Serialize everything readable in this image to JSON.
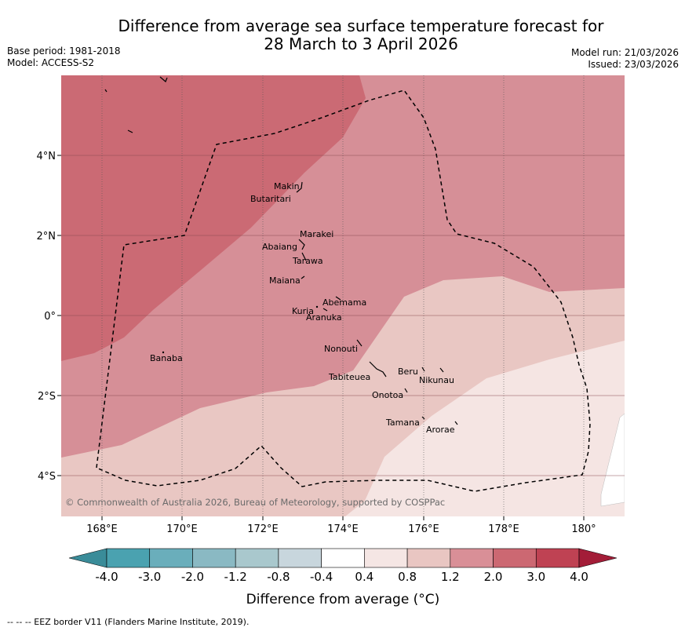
{
  "title": {
    "line1": "Difference from average sea surface temperature forecast for",
    "line2": "28 March to 3 April 2026"
  },
  "meta": {
    "base_period": "Base period: 1981-2018",
    "model": "Model: ACCESS-S2",
    "model_run": "Model run: 21/03/2026",
    "issued": "Issued: 23/03/2026"
  },
  "map": {
    "x_ticks": [
      "168°E",
      "170°E",
      "172°E",
      "174°E",
      "176°E",
      "178°E",
      "180°"
    ],
    "y_ticks": [
      "4°N",
      "2°N",
      "0°",
      "2°S",
      "4°S"
    ],
    "places": [
      {
        "name": "Makin"
      },
      {
        "name": "Butaritari"
      },
      {
        "name": "Marakei"
      },
      {
        "name": "Abaiang"
      },
      {
        "name": "Tarawa"
      },
      {
        "name": "Maiana"
      },
      {
        "name": "Abemama"
      },
      {
        "name": "Kuria"
      },
      {
        "name": "Aranuka"
      },
      {
        "name": "Nonouti"
      },
      {
        "name": "Banaba"
      },
      {
        "name": "Tabiteuea"
      },
      {
        "name": "Beru"
      },
      {
        "name": "Nikunau"
      },
      {
        "name": "Onotoa"
      },
      {
        "name": "Tamana"
      },
      {
        "name": "Arorae"
      }
    ],
    "copyright": "© Commonwealth of Australia 2026, Bureau of Meteorology, supported by COSPPac"
  },
  "colorbar": {
    "ticks": [
      "-4.0",
      "-3.0",
      "-2.0",
      "-1.2",
      "-0.8",
      "-0.4",
      "0.4",
      "0.8",
      "1.2",
      "2.0",
      "3.0",
      "4.0"
    ],
    "colors": [
      "#3a8c99",
      "#4aa2b0",
      "#6aaebb",
      "#8ab9c3",
      "#a9c8cd",
      "#c8d6dd",
      "#ffffff",
      "#f5e6e4",
      "#e9c6c2",
      "#d98f97",
      "#cc6872",
      "#bf4253",
      "#a31d38"
    ],
    "title": "Difference from average ($^\\circ$C)",
    "title_display": "Difference from average (°C)"
  },
  "footer": "--  --  -- EEZ border V11 (Flanders Marine Institute, 2019)."
}
